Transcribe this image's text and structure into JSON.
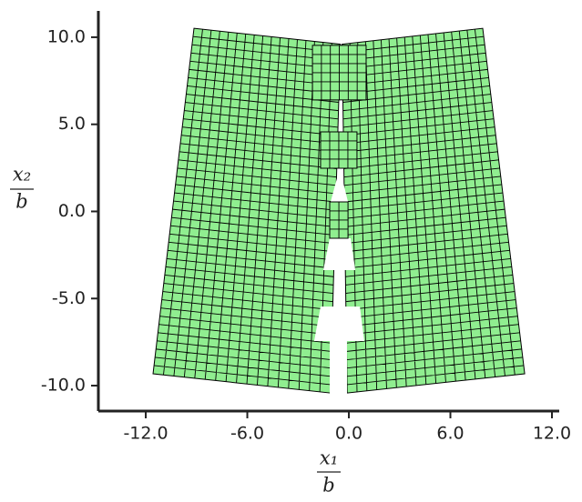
{
  "chart_data": {
    "type": "mesh",
    "xlabel_num": "x₁",
    "xlabel_den": "b",
    "ylabel_num": "x₂",
    "ylabel_den": "b",
    "xlim": [
      -14.8,
      12.43
    ],
    "ylim": [
      -11.46,
      11.51
    ],
    "xticks": [
      {
        "value": -12,
        "label": "-12.0"
      },
      {
        "value": -6,
        "label": "-6.0"
      },
      {
        "value": 0,
        "label": "0.0"
      },
      {
        "value": 6,
        "label": "6.0"
      },
      {
        "value": 12,
        "label": "12.0"
      }
    ],
    "yticks": [
      {
        "value": -10,
        "label": "-10.0"
      },
      {
        "value": -5,
        "label": "-5.0"
      },
      {
        "value": 0,
        "label": "0.0"
      },
      {
        "value": 5,
        "label": "5.0"
      },
      {
        "value": 10,
        "label": "10.0"
      }
    ],
    "color": "#90ee90",
    "patches": [
      {
        "corners": [
          [
            -9.15,
            10.51
          ],
          [
            -0.5,
            9.6
          ],
          [
            -1.1,
            -10.42
          ],
          [
            -11.57,
            -9.32
          ]
        ],
        "divisions": [
          17,
          42
        ]
      },
      {
        "corners": [
          [
            -0.4,
            9.6
          ],
          [
            7.91,
            10.51
          ],
          [
            10.39,
            -9.32
          ],
          [
            -0.1,
            -10.42
          ]
        ],
        "divisions": [
          18,
          42
        ]
      }
    ],
    "gaps": [
      [
        [
          -1.67,
          -5.46
        ],
        [
          0.65,
          -5.46
        ],
        [
          0.91,
          -7.44
        ],
        [
          -0.11,
          -7.44
        ],
        [
          -0.11,
          -10.6
        ],
        [
          -1.13,
          -10.6
        ],
        [
          -1.13,
          -7.44
        ],
        [
          -2.05,
          -7.44
        ]
      ],
      [
        [
          -1.51,
          -3.37
        ],
        [
          -1.13,
          -1.54
        ],
        [
          0.11,
          -1.54
        ],
        [
          0.38,
          -3.37
        ]
      ],
      [
        [
          -1.08,
          0.55
        ],
        [
          -0.54,
          2.48
        ],
        [
          -0.05,
          0.55
        ]
      ]
    ],
    "overlays": [
      {
        "corners": [
          [
            -2.15,
            9.53
          ],
          [
            1.02,
            9.53
          ],
          [
            1.02,
            6.4
          ],
          [
            -2.15,
            6.4
          ]
        ],
        "divisions": [
          6,
          6
        ]
      },
      {
        "corners": [
          [
            -1.67,
            4.57
          ],
          [
            0.48,
            4.57
          ],
          [
            0.48,
            2.48
          ],
          [
            -1.67,
            2.48
          ]
        ],
        "divisions": [
          4,
          4
        ]
      },
      {
        "corners": [
          [
            -1.13,
            0.55
          ],
          [
            -0.05,
            0.55
          ],
          [
            -0.05,
            -1.54
          ],
          [
            -1.13,
            -1.54
          ]
        ],
        "divisions": [
          2,
          4
        ]
      }
    ]
  }
}
